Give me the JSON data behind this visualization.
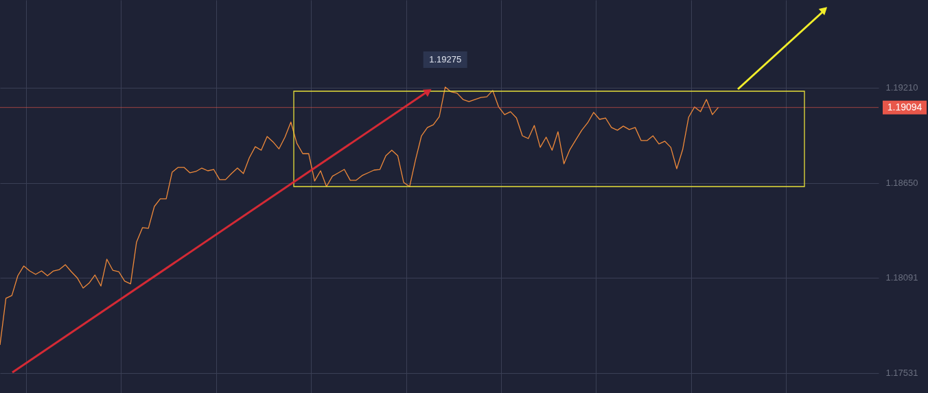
{
  "chart_data": {
    "type": "line",
    "categories": [
      null,
      null,
      null,
      null,
      null,
      null,
      null,
      null,
      null,
      null,
      null,
      null,
      null,
      null,
      null,
      null,
      null,
      null,
      null,
      null,
      null,
      null,
      null,
      null,
      null,
      null,
      null,
      null,
      null,
      null,
      null,
      null,
      null,
      null,
      null,
      null,
      null,
      null,
      null,
      null,
      null,
      null,
      null,
      null,
      null,
      null,
      null,
      null,
      null,
      null,
      null,
      null,
      null,
      null,
      null,
      null,
      null,
      null,
      null,
      null,
      null,
      null,
      null,
      null,
      null,
      null,
      null,
      null,
      null,
      null,
      null,
      null,
      null,
      null,
      null,
      null,
      null,
      null,
      null,
      null,
      null,
      null,
      null,
      null,
      null,
      null,
      null,
      null,
      null,
      null,
      null,
      null,
      null,
      null,
      null,
      null,
      null,
      null,
      null,
      null,
      null,
      null,
      null,
      null,
      null,
      null,
      null,
      null,
      null,
      null,
      null,
      null,
      null,
      null,
      null,
      null,
      null,
      null,
      null,
      null,
      null,
      null,
      null,
      null,
      null,
      null,
      null,
      null,
      null,
      null,
      null,
      null,
      null,
      null,
      null,
      null,
      null,
      null,
      null,
      null,
      null,
      null,
      null,
      null,
      null,
      null,
      null,
      null,
      null
    ],
    "series": [
      {
        "color": "#f08a3a",
        "values": [
          1.17695,
          1.1797,
          1.17986,
          1.18103,
          1.1816,
          1.18131,
          1.18111,
          1.18131,
          1.18103,
          1.18131,
          1.18139,
          1.18168,
          1.18127,
          1.18091,
          1.1803,
          1.18059,
          1.18107,
          1.18042,
          1.182,
          1.18135,
          1.18127,
          1.18071,
          1.18055,
          1.18301,
          1.18386,
          1.18382,
          1.18511,
          1.18556,
          1.18556,
          1.18713,
          1.18741,
          1.18741,
          1.18709,
          1.18717,
          1.18737,
          1.18721,
          1.18729,
          1.18669,
          1.18669,
          1.18705,
          1.18737,
          1.18705,
          1.18798,
          1.18863,
          1.18842,
          1.18923,
          1.18891,
          1.1885,
          1.18919,
          1.19008,
          1.18883,
          1.18822,
          1.18822,
          1.18661,
          1.18721,
          1.18628,
          1.18689,
          1.18709,
          1.18729,
          1.18665,
          1.18665,
          1.18693,
          1.18709,
          1.18725,
          1.18729,
          1.1881,
          1.18842,
          1.1881,
          1.18652,
          1.18628,
          1.18786,
          1.18927,
          1.18976,
          1.18992,
          1.1904,
          1.19214,
          1.19186,
          1.19178,
          1.19141,
          1.19129,
          1.19141,
          1.19153,
          1.19157,
          1.19194,
          1.19097,
          1.19052,
          1.19069,
          1.19032,
          1.18927,
          1.18911,
          1.18988,
          1.18859,
          1.18919,
          1.18842,
          1.18951,
          1.18762,
          1.18846,
          1.18903,
          1.1896,
          1.19004,
          1.19065,
          1.19024,
          1.19032,
          1.18976,
          1.1896,
          1.18984,
          1.18964,
          1.18976,
          1.18899,
          1.18899,
          1.18927,
          1.18879,
          1.18895,
          1.18859,
          1.18733,
          1.18846,
          1.19036,
          1.19097,
          1.19069,
          1.19141,
          1.19052,
          1.19094,
          null,
          null,
          null,
          null,
          null,
          null,
          null,
          null,
          null,
          null,
          null,
          null,
          null,
          null,
          null,
          null,
          null,
          null,
          null,
          null,
          null,
          null,
          null,
          null,
          null,
          null,
          null
        ]
      }
    ],
    "ylim": [
      1.17412,
      1.19727
    ],
    "yticks": [
      {
        "value": 1.1921,
        "label": "1.19210"
      },
      {
        "value": 1.1865,
        "label": "1.18650"
      },
      {
        "value": 1.18091,
        "label": "1.18091"
      },
      {
        "value": 1.17531,
        "label": "1.17531"
      }
    ],
    "tick_labels": "y",
    "grid": true,
    "marker": "none",
    "line_style": "solid",
    "ref_lines": [
      {
        "axis": "y",
        "value": 1.19094,
        "label": "1.19094",
        "color": "#e8574a"
      }
    ],
    "annotations": [
      "1.19275"
    ]
  }
}
